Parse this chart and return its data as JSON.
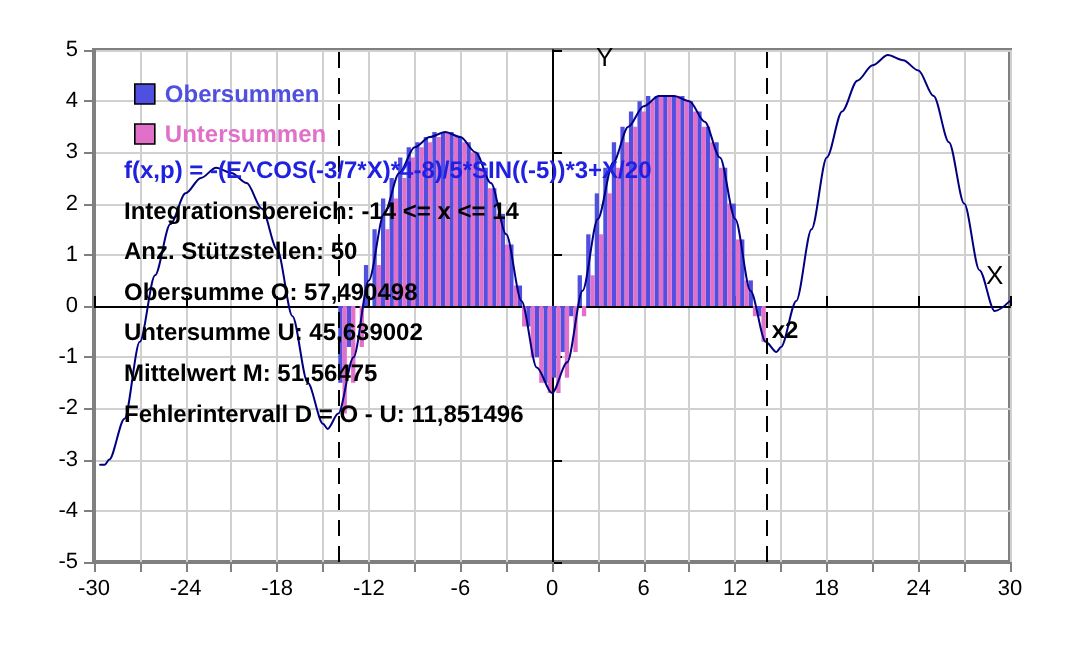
{
  "chart_data": {
    "type": "bar",
    "xlabel": "X",
    "ylabel": "Y",
    "xlim": [
      -30,
      30
    ],
    "ylim": [
      -5,
      5
    ],
    "xticks": [
      -30,
      {
        "value": -27,
        "label": null
      },
      -24,
      {
        "value": -21,
        "label": null
      },
      -18,
      {
        "value": -15,
        "label": null
      },
      -12,
      {
        "value": -9,
        "label": null
      },
      -6,
      {
        "value": -3,
        "label": null
      },
      0,
      {
        "value": 3,
        "label": null
      },
      6,
      {
        "value": 9,
        "label": null
      },
      12,
      {
        "value": 15,
        "label": null
      },
      18,
      {
        "value": 21,
        "label": null
      },
      24,
      {
        "value": 27,
        "label": null
      },
      30
    ],
    "yticks": [
      -5,
      -4,
      -3,
      -2,
      -1,
      0,
      1,
      2,
      3,
      4,
      5
    ],
    "grid": true,
    "legend": "top left",
    "series": [
      {
        "name": "Obersummen",
        "color": "#5050e0",
        "x": [
          -13.72,
          -13.16,
          -12.6,
          -12.04,
          -11.48,
          -10.92,
          -10.36,
          -9.8,
          -9.24,
          -8.68,
          -8.12,
          -7.56,
          -7.0,
          -6.44,
          -5.88,
          -5.32,
          -4.76,
          -4.2,
          -3.64,
          -3.08,
          -2.52,
          -1.96,
          -1.4,
          -0.84,
          -0.28,
          0.28,
          0.84,
          1.4,
          1.96,
          2.52,
          3.08,
          3.64,
          4.2,
          4.76,
          5.32,
          5.88,
          6.44,
          7.0,
          7.56,
          8.12,
          8.68,
          9.24,
          9.8,
          10.36,
          10.92,
          11.48,
          12.04,
          12.6,
          13.16,
          13.72
        ],
        "values": [
          -1.5,
          -0.8,
          0.0,
          0.8,
          1.5,
          2.1,
          2.5,
          2.9,
          3.1,
          3.2,
          3.3,
          3.4,
          3.4,
          3.4,
          3.3,
          3.2,
          3.0,
          2.7,
          2.3,
          1.8,
          1.2,
          0.4,
          -0.4,
          -1.0,
          -1.5,
          -1.4,
          -0.9,
          -0.2,
          0.6,
          1.4,
          2.2,
          2.7,
          3.2,
          3.5,
          3.8,
          4.0,
          4.1,
          4.1,
          4.1,
          4.1,
          4.1,
          4.0,
          3.8,
          3.5,
          3.2,
          2.7,
          2.0,
          1.3,
          0.5,
          -0.2
        ]
      },
      {
        "name": "Untersummen",
        "color": "#e070c8",
        "x": [
          -13.72,
          -13.16,
          -12.6,
          -12.04,
          -11.48,
          -10.92,
          -10.36,
          -9.8,
          -9.24,
          -8.68,
          -8.12,
          -7.56,
          -7.0,
          -6.44,
          -5.88,
          -5.32,
          -4.76,
          -4.2,
          -3.64,
          -3.08,
          -2.52,
          -1.96,
          -1.4,
          -0.84,
          -0.28,
          0.28,
          0.84,
          1.4,
          1.96,
          2.52,
          3.08,
          3.64,
          4.2,
          4.76,
          5.32,
          5.88,
          6.44,
          7.0,
          7.56,
          8.12,
          8.68,
          9.24,
          9.8,
          10.36,
          10.92,
          11.48,
          12.04,
          12.6,
          13.16,
          13.72
        ],
        "values": [
          -2.1,
          -1.5,
          -0.8,
          0.0,
          0.8,
          1.5,
          2.1,
          2.5,
          2.9,
          3.1,
          3.2,
          3.3,
          3.4,
          3.3,
          3.2,
          3.0,
          2.7,
          2.3,
          1.8,
          1.2,
          0.4,
          -0.4,
          -1.0,
          -1.5,
          -1.7,
          -1.7,
          -1.4,
          -0.9,
          -0.2,
          0.6,
          1.4,
          2.2,
          2.7,
          3.2,
          3.5,
          3.8,
          4.0,
          4.1,
          4.1,
          4.1,
          4.0,
          3.8,
          3.5,
          3.2,
          2.7,
          2.0,
          1.3,
          0.5,
          -0.2,
          -0.7
        ]
      },
      {
        "type": "line",
        "color": "#000080",
        "x": [
          -29.6,
          -29.3,
          -29,
          -28,
          -27,
          -26,
          -25,
          -24,
          -23,
          -22,
          -21,
          -20,
          -19,
          -18,
          -17,
          -16,
          -15,
          -14.7,
          -14,
          -13,
          -12,
          -11,
          -10,
          -9,
          -8,
          -7,
          -6,
          -5,
          -4,
          -3,
          -2,
          -1,
          0,
          1,
          2,
          3,
          4,
          5,
          6,
          7,
          8,
          9,
          10,
          11,
          12,
          13,
          14,
          14.7,
          15,
          16,
          17,
          18,
          19,
          20,
          21,
          22,
          23,
          24,
          25,
          26,
          27,
          28,
          29,
          30
        ],
        "values": [
          -3.1,
          -3.1,
          -3.0,
          -2.2,
          -0.7,
          0.6,
          1.6,
          2.2,
          2.5,
          2.7,
          2.6,
          2.4,
          1.9,
          1.1,
          -0.2,
          -1.5,
          -2.3,
          -2.4,
          -2.1,
          -1.0,
          0.5,
          1.8,
          2.6,
          3.1,
          3.3,
          3.4,
          3.3,
          3.0,
          2.4,
          1.4,
          0.1,
          -1.2,
          -1.7,
          -1.1,
          0.3,
          1.7,
          2.8,
          3.5,
          3.9,
          4.1,
          4.1,
          4.0,
          3.6,
          2.9,
          1.7,
          0.3,
          -0.7,
          -0.9,
          -0.8,
          0.1,
          1.5,
          2.9,
          3.8,
          4.4,
          4.7,
          4.9,
          4.8,
          4.6,
          4.1,
          3.2,
          2.0,
          0.7,
          -0.1,
          0.1
        ]
      }
    ],
    "ref_lines": [
      {
        "axis": "x",
        "value": -14,
        "label": null,
        "color": "#000000",
        "line_style": "dashed"
      },
      {
        "axis": "x",
        "value": 14,
        "label": "x2",
        "color": "#000000",
        "line_style": "dashed"
      }
    ],
    "annotations": [
      "f(x,p) = -(E^COS(-3/7*X)*4-8)/5*SIN((-5))*3+X/20",
      "Integrationsbereich: -14 <= x <= 14",
      "Anz. Stützstellen: 50",
      "Obersumme O: 57,490498",
      "Untersumme U: 45,639002",
      "Mittelwert M: 51,56475",
      "Fehlerintervall D = O - U: 11,851496"
    ]
  }
}
